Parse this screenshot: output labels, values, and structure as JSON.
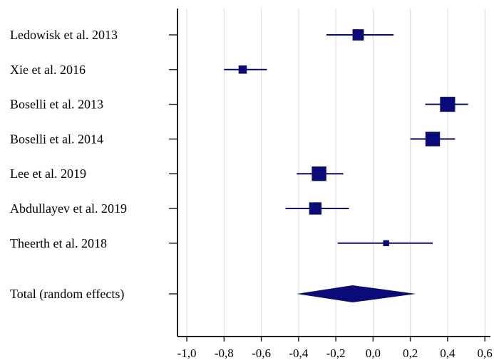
{
  "chart_data": {
    "type": "forest",
    "title": "",
    "xlabel": "",
    "ylabel": "",
    "xlim": [
      -1.05,
      0.63
    ],
    "grid": true,
    "x_ticks": [
      -1.0,
      -0.8,
      -0.6,
      -0.4,
      -0.2,
      0.0,
      0.2,
      0.4,
      0.6
    ],
    "x_tick_labels": [
      "-1,0",
      "-0,8",
      "-0,6",
      "-0,4",
      "-0,2",
      "0,0",
      "0,2",
      "0,4",
      "0,6"
    ],
    "studies": [
      {
        "label": "Ledowisk et al. 2013",
        "estimate": -0.08,
        "ci_low": -0.25,
        "ci_high": 0.11,
        "weight": 0.66
      },
      {
        "label": "Xie et al. 2016",
        "estimate": -0.7,
        "ci_low": -0.8,
        "ci_high": -0.57,
        "weight": 0.48
      },
      {
        "label": "Boselli et al. 2013",
        "estimate": 0.4,
        "ci_low": 0.28,
        "ci_high": 0.51,
        "weight": 0.88
      },
      {
        "label": "Boselli et al. 2014",
        "estimate": 0.32,
        "ci_low": 0.2,
        "ci_high": 0.44,
        "weight": 0.85
      },
      {
        "label": "Lee et al. 2019",
        "estimate": -0.29,
        "ci_low": -0.41,
        "ci_high": -0.16,
        "weight": 0.85
      },
      {
        "label": "Abdullayev et al. 2019",
        "estimate": -0.31,
        "ci_low": -0.47,
        "ci_high": -0.13,
        "weight": 0.72
      },
      {
        "label": "Theerth et al. 2018",
        "estimate": 0.07,
        "ci_low": -0.19,
        "ci_high": 0.32,
        "weight": 0.35
      }
    ],
    "pooled": {
      "label": "Total (random effects)",
      "estimate": -0.11,
      "ci_low": -0.41,
      "ci_high": 0.23
    },
    "colors": {
      "marker": "#0a0a78",
      "axis": "#222222",
      "grid": "#d9d9d9"
    }
  }
}
